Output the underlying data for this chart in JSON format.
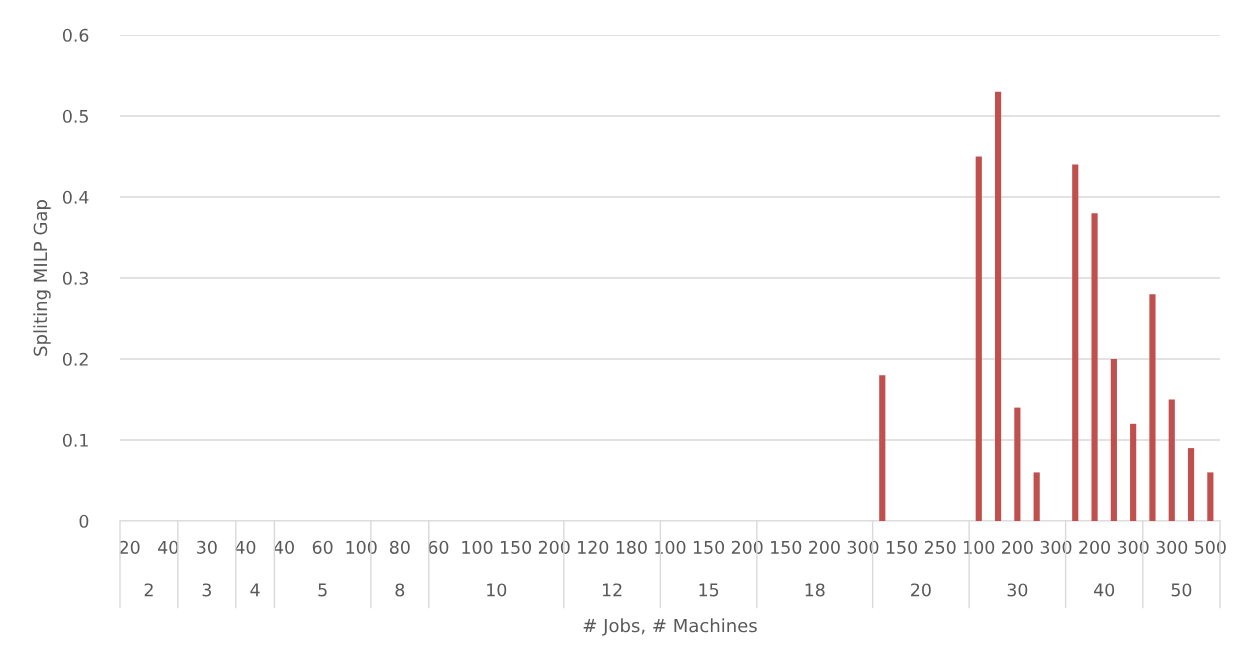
{
  "chart_data": {
    "type": "bar",
    "ylabel": "Spliting MILP Gap",
    "xlabel": "# Jobs, # Machines",
    "categories": [
      "20",
      null,
      "40",
      null,
      "30",
      null,
      "40",
      null,
      "40",
      null,
      "60",
      null,
      "100",
      null,
      "80",
      null,
      "60",
      null,
      "100",
      null,
      "150",
      null,
      "200",
      null,
      "120",
      null,
      "180",
      null,
      "100",
      null,
      "150",
      null,
      "200",
      null,
      "150",
      null,
      "200",
      null,
      "300",
      null,
      "150",
      null,
      "250",
      null,
      "100",
      null,
      "200",
      null,
      "300",
      null,
      "200",
      null,
      "300",
      null,
      "300",
      null,
      "500"
    ],
    "annotations": [
      "2",
      "3",
      "4",
      "5",
      "8",
      "10",
      "12",
      "15",
      "18",
      "20",
      "30",
      "40",
      "50"
    ],
    "values": [
      0,
      0,
      0,
      0,
      0,
      0,
      0,
      0,
      0,
      0,
      0,
      0,
      0,
      0,
      0,
      0,
      0,
      0,
      0,
      0,
      0,
      0,
      0,
      0,
      0,
      0,
      0,
      0,
      0,
      0,
      0,
      0,
      0,
      0,
      0,
      0,
      0,
      0,
      0,
      0.18,
      0,
      0,
      0,
      0,
      0.45,
      0.53,
      0.14,
      0.06,
      0,
      0.44,
      0.38,
      0.2,
      0.12,
      0.28,
      0.15,
      0.09,
      0.06
    ],
    "color": "#c0504d",
    "ylim": [
      0,
      0.6
    ],
    "yticks": [
      0,
      0.1,
      0.2,
      0.3,
      0.4,
      0.5,
      0.6
    ],
    "grid": "y"
  }
}
